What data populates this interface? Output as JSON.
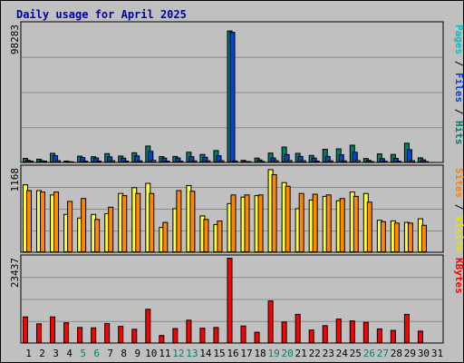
{
  "chart_data": {
    "type": "bar",
    "title": "Daily usage for April 2025",
    "x": [
      "1",
      "2",
      "3",
      "4",
      "5",
      "6",
      "7",
      "8",
      "9",
      "10",
      "11",
      "12",
      "13",
      "14",
      "15",
      "16",
      "17",
      "18",
      "19",
      "20",
      "21",
      "22",
      "23",
      "24",
      "25",
      "26",
      "27",
      "28",
      "29",
      "30",
      "31"
    ],
    "weekend_days": [
      "5",
      "6",
      "12",
      "13",
      "19",
      "20",
      "26",
      "27"
    ],
    "panels": [
      {
        "axis_max_label": "98283",
        "ylim": [
          0,
          98283
        ],
        "right_label_parts": [
          {
            "text": "Pages",
            "color": "#00c0c0"
          },
          {
            "text": " / ",
            "color": "#000000"
          },
          {
            "text": "Files",
            "color": "#0044dd"
          },
          {
            "text": " / ",
            "color": "#000000"
          },
          {
            "text": "Hits",
            "color": "#00806a"
          }
        ],
        "series": [
          {
            "name": "Hits",
            "color": "#00806a",
            "values": [
              3200,
              2600,
              6800,
              1300,
              4800,
              4400,
              6600,
              4900,
              7200,
              12000,
              4500,
              4600,
              7600,
              6000,
              8800,
              94000,
              1800,
              3400,
              7000,
              11300,
              6800,
              5300,
              9700,
              10000,
              12600,
              3100,
              6400,
              6000,
              14000,
              3600,
              0
            ]
          },
          {
            "name": "Files",
            "color": "#0044dd",
            "values": [
              1800,
              1500,
              5100,
              900,
              3800,
              3500,
              4300,
              3400,
              5000,
              8200,
              3400,
              3500,
              4400,
              4000,
              5100,
              93000,
              1000,
              2100,
              3500,
              5900,
              4600,
              3400,
              4600,
              5800,
              7600,
              1800,
              3000,
              3200,
              9400,
              2200,
              0
            ]
          },
          {
            "name": "Pages",
            "color": "#00c0c0",
            "values": [
              1300,
              1300,
              1600,
              700,
              1300,
              1300,
              1600,
              1300,
              1500,
              1800,
              1300,
              1200,
              1500,
              1500,
              1600,
              1400,
              900,
              1000,
              1600,
              1700,
              1600,
              1300,
              1500,
              1500,
              1700,
              900,
              1200,
              1200,
              1600,
              1000,
              0
            ]
          }
        ]
      },
      {
        "axis_max_label": "1168",
        "ylim": [
          0,
          1168
        ],
        "right_label_parts": [
          {
            "text": "Sites",
            "color": "#ff8000"
          },
          {
            "text": " / ",
            "color": "#000000"
          },
          {
            "text": "Visits",
            "color": "#e8e000"
          }
        ],
        "series": [
          {
            "name": "Visits",
            "color": "#ffff33",
            "values": [
              940,
              860,
              800,
              530,
              480,
              530,
              540,
              820,
              900,
              960,
              350,
              610,
              930,
              510,
              390,
              680,
              770,
              790,
              1150,
              970,
              610,
              730,
              780,
              720,
              840,
              820,
              450,
              440,
              420,
              470,
              0
            ]
          },
          {
            "name": "Sites",
            "color": "#ff8800",
            "values": [
              860,
              840,
              840,
              710,
              750,
              460,
              630,
              790,
              820,
              820,
              420,
              860,
              850,
              460,
              440,
              800,
              800,
              800,
              1080,
              920,
              820,
              810,
              800,
              750,
              780,
              700,
              430,
              410,
              410,
              380,
              0
            ]
          }
        ]
      },
      {
        "axis_max_label": "23437",
        "ylim": [
          0,
          23437
        ],
        "right_label_parts": [
          {
            "text": "KBytes",
            "color": "#ff0000"
          }
        ],
        "series": [
          {
            "name": "KBytes",
            "color": "#ff0000",
            "values": [
              7300,
              5400,
              7300,
              5700,
              4400,
              4300,
              5500,
              4700,
              3900,
              9400,
              2200,
              4100,
              6400,
              4200,
              4400,
              23437,
              4800,
              3100,
              11700,
              5900,
              8000,
              3700,
              4900,
              6700,
              6200,
              5800,
              4000,
              3600,
              8000,
              3400,
              0
            ]
          }
        ]
      }
    ]
  }
}
